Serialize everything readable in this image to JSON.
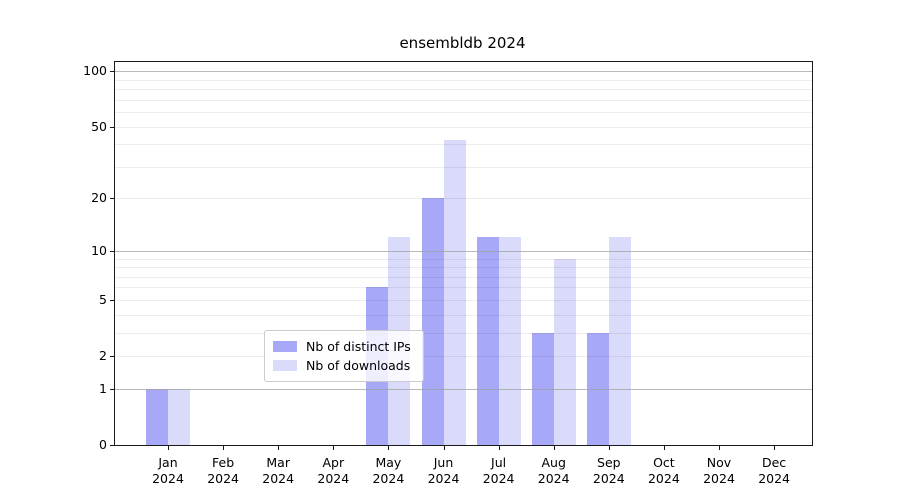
{
  "title": "ensembldb 2024",
  "chart_data": {
    "type": "bar",
    "title": "ensembldb 2024",
    "categories": [
      "Jan 2024",
      "Feb 2024",
      "Mar 2024",
      "Apr 2024",
      "May 2024",
      "Jun 2024",
      "Jul 2024",
      "Aug 2024",
      "Sep 2024",
      "Oct 2024",
      "Nov 2024",
      "Dec 2024"
    ],
    "series": [
      {
        "name": "Nb of distinct IPs",
        "color": "#a8a8f8",
        "values": [
          1,
          0,
          0,
          0,
          6,
          20,
          12,
          3,
          3,
          0,
          0,
          0
        ]
      },
      {
        "name": "Nb of downloads",
        "color": "#dadafa",
        "values": [
          1,
          0,
          0,
          0,
          12,
          42,
          12,
          9,
          12,
          0,
          0,
          0
        ]
      }
    ],
    "xlabel": "",
    "ylabel": "",
    "yscale": "log1p",
    "ytick_labels": [
      "0",
      "1",
      "2",
      "5",
      "10",
      "20",
      "50",
      "100"
    ],
    "yticks": [
      0,
      1,
      2,
      5,
      10,
      20,
      50,
      100
    ],
    "major_gridlines": [
      1,
      10,
      100
    ],
    "minor_gridlines": [
      2,
      3,
      4,
      5,
      6,
      7,
      8,
      9,
      20,
      30,
      40,
      50,
      60,
      70,
      80,
      90
    ],
    "ylim": [
      0,
      112
    ],
    "grid": "on",
    "legend_position": "lower-center-inside"
  },
  "legend": {
    "items": [
      {
        "label": "Nb of distinct IPs",
        "color": "#a8a8f8"
      },
      {
        "label": "Nb of downloads",
        "color": "#dadafa"
      }
    ]
  },
  "colors": {
    "bar_ips": "#a8a8f8",
    "bar_downloads": "#dadafa",
    "major_grid": "#c8c8c8",
    "minor_grid": "#ececec",
    "spine": "#1a1a1a",
    "background": "#ffffff"
  }
}
